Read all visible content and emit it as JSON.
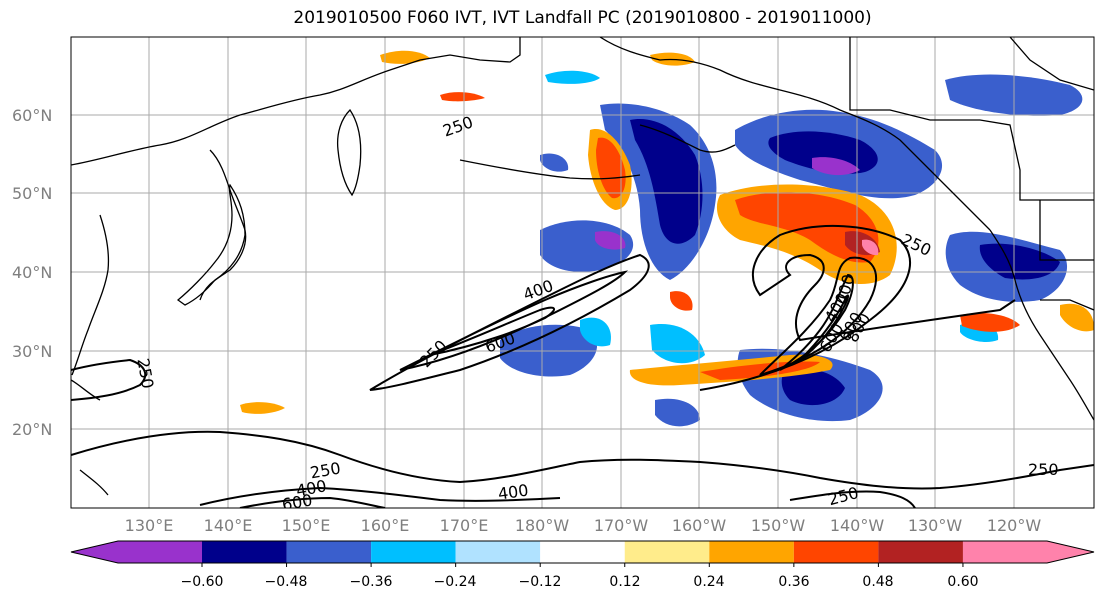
{
  "title": "2019010500 F060 IVT, IVT Landfall PC (2019010800 - 2019011000)",
  "map": {
    "lat_labels": [
      "60°N",
      "50°N",
      "40°N",
      "30°N",
      "20°N"
    ],
    "lon_labels": [
      "130°E",
      "140°E",
      "150°E",
      "160°E",
      "170°E",
      "180°W",
      "170°W",
      "160°W",
      "150°W",
      "140°W",
      "130°W",
      "120°W"
    ],
    "contour_labels": [
      "250",
      "400",
      "600",
      "250",
      "400",
      "600",
      "400",
      "600",
      "800",
      "250",
      "250",
      "400",
      "600",
      "400",
      "250",
      "250"
    ]
  },
  "colorbar": {
    "colors": [
      "#9932cc",
      "#00008b",
      "#3a5fcd",
      "#00bfff",
      "#b0e2ff",
      "#ffffff",
      "#ffec8b",
      "#ffa500",
      "#ff4500",
      "#b22222",
      "#ff82ab"
    ],
    "labels": [
      "−0.60",
      "−0.48",
      "−0.36",
      "−0.24",
      "−0.12",
      "0.12",
      "0.24",
      "0.36",
      "0.48",
      "0.60"
    ]
  }
}
